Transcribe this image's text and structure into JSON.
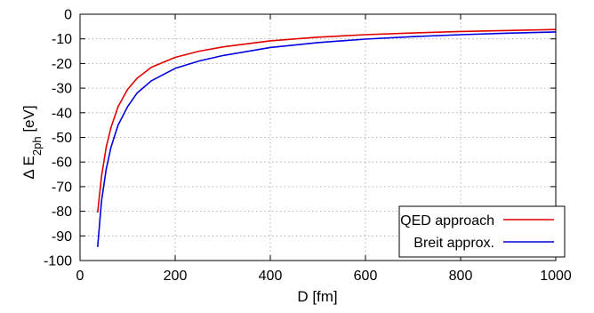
{
  "chart_data": {
    "type": "line",
    "xlabel": "D [fm]",
    "ylabel": {
      "prefix": "Δ E",
      "sub": "2ph",
      "suffix": " [eV]"
    },
    "xlim": [
      0,
      1000
    ],
    "ylim": [
      -100,
      0
    ],
    "xticks": [
      0,
      200,
      400,
      600,
      800,
      1000
    ],
    "yticks": [
      0,
      -10,
      -20,
      -30,
      -40,
      -50,
      -60,
      -70,
      -80,
      -90,
      -100
    ],
    "grid": true,
    "legend_position": "bottom-right",
    "series": [
      {
        "name": "QED approach",
        "color": "#e00000",
        "x": [
          37,
          45,
          55,
          65,
          80,
          100,
          120,
          150,
          200,
          250,
          300,
          400,
          500,
          600,
          700,
          800,
          900,
          1000
        ],
        "y": [
          -80.5,
          -66,
          -54,
          -46,
          -37.5,
          -30.5,
          -26,
          -21.5,
          -17.5,
          -15,
          -13.3,
          -10.8,
          -9.3,
          -8.3,
          -7.6,
          -7.0,
          -6.6,
          -6.2
        ]
      },
      {
        "name": "Breit approx.",
        "color": "#0000e0",
        "x": [
          37,
          45,
          55,
          65,
          80,
          100,
          120,
          150,
          200,
          250,
          300,
          400,
          500,
          600,
          700,
          800,
          900,
          1000
        ],
        "y": [
          -94.5,
          -76,
          -63,
          -54,
          -45,
          -37.5,
          -32,
          -27,
          -22,
          -19,
          -16.8,
          -13.5,
          -11.5,
          -10.1,
          -9.1,
          -8.3,
          -7.7,
          -7.2
        ]
      }
    ]
  }
}
